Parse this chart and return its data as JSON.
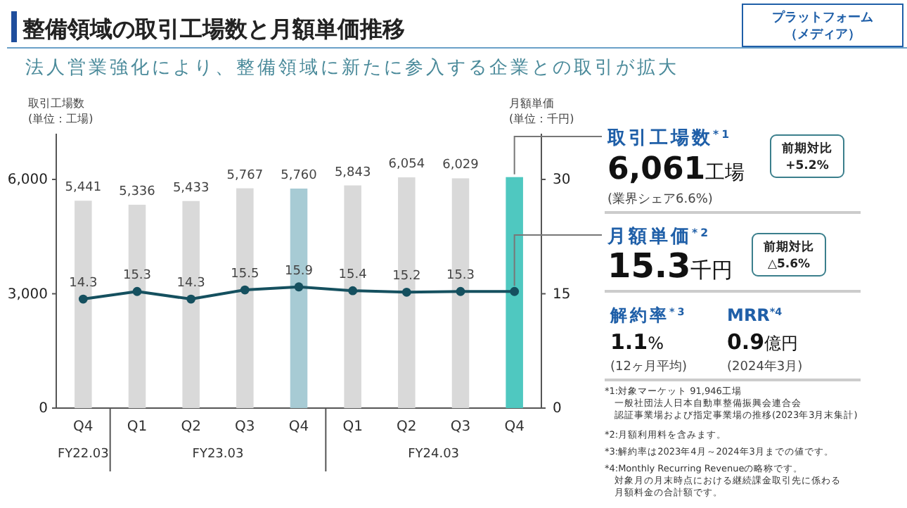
{
  "chart_data": [
    {
      "type": "bar",
      "title": "整備領域の取引工場数と月額単価推移",
      "subtitle": "法人営業強化により、整備領域に新たに参入する企業との取引が拡大",
      "ylabel": "取引工場数\n(単位：工場)",
      "y2label": "月額単価\n(単位：千円)",
      "categories": [
        "Q4",
        "Q1",
        "Q2",
        "Q3",
        "Q4",
        "Q1",
        "Q2",
        "Q3",
        "Q4"
      ],
      "annotations": [
        "プラットフォーム",
        "（メディア）",
        "FY22.03",
        "FY23.03",
        "FY24.03"
      ],
      "series": [
        {
          "type": "bar",
          "colors": [
            "#d9d9d9",
            "#d9d9d9",
            "#d9d9d9",
            "#d9d9d9",
            "#a7cbd4",
            "#d9d9d9",
            "#d9d9d9",
            "#d9d9d9",
            "#4fc8c0"
          ],
          "values": [
            5441,
            5336,
            5433,
            5767,
            5760,
            5843,
            6054,
            6029,
            6061
          ],
          "value_labels": [
            "5,441",
            "5,336",
            "5,433",
            "5,767",
            "5,760",
            "5,843",
            "6,054",
            "6,029",
            null
          ]
        },
        {
          "type": "line",
          "axis": "y2",
          "color": "#15505f",
          "values": [
            14.3,
            15.3,
            14.3,
            15.5,
            15.9,
            15.4,
            15.2,
            15.3,
            15.3
          ],
          "value_labels": [
            "14.3",
            "15.3",
            "14.3",
            "15.5",
            "15.9",
            "15.4",
            "15.2",
            "15.3",
            null
          ]
        }
      ],
      "marker": "circle",
      "ylim": [
        0,
        7200
      ],
      "yticks": [
        {
          "value": 0,
          "label": "0"
        },
        {
          "value": 3000,
          "label": "3,000"
        },
        {
          "value": 6000,
          "label": "6,000"
        }
      ],
      "y2lim": [
        0,
        36
      ],
      "y2ticks": [
        0,
        15,
        30
      ],
      "grid": false
    },
    {
      "type": "other",
      "annotations": [
        "取引工場数$^{*1}$",
        "6,061工場",
        "(業界シェア6.6%)",
        "前期対比\n+5.2%",
        "月額単価$^{*2}$",
        "15.3千円",
        "前期対比\n△5.6%",
        "解約率$^{*3}$",
        "1.1%",
        "(12ヶ月平均)",
        "MRR$^{*4}$",
        "0.9億円",
        "(2024年3月)",
        "*1:対象マーケット 91,946工場",
        "一般社団法人日本自動車整備振興会連合会",
        "認証事業場および指定事業場の推移(2023年3月末集計)",
        "*2:月額利用料を含みます。",
        "*3:解約率は2023年4月～2024年3月までの値です。",
        "*4:Monthly Recurring Revenueの略称です。",
        "対象月の月末時点における継続課金取引先に係わる",
        "月額料金の合計額です。"
      ]
    }
  ]
}
